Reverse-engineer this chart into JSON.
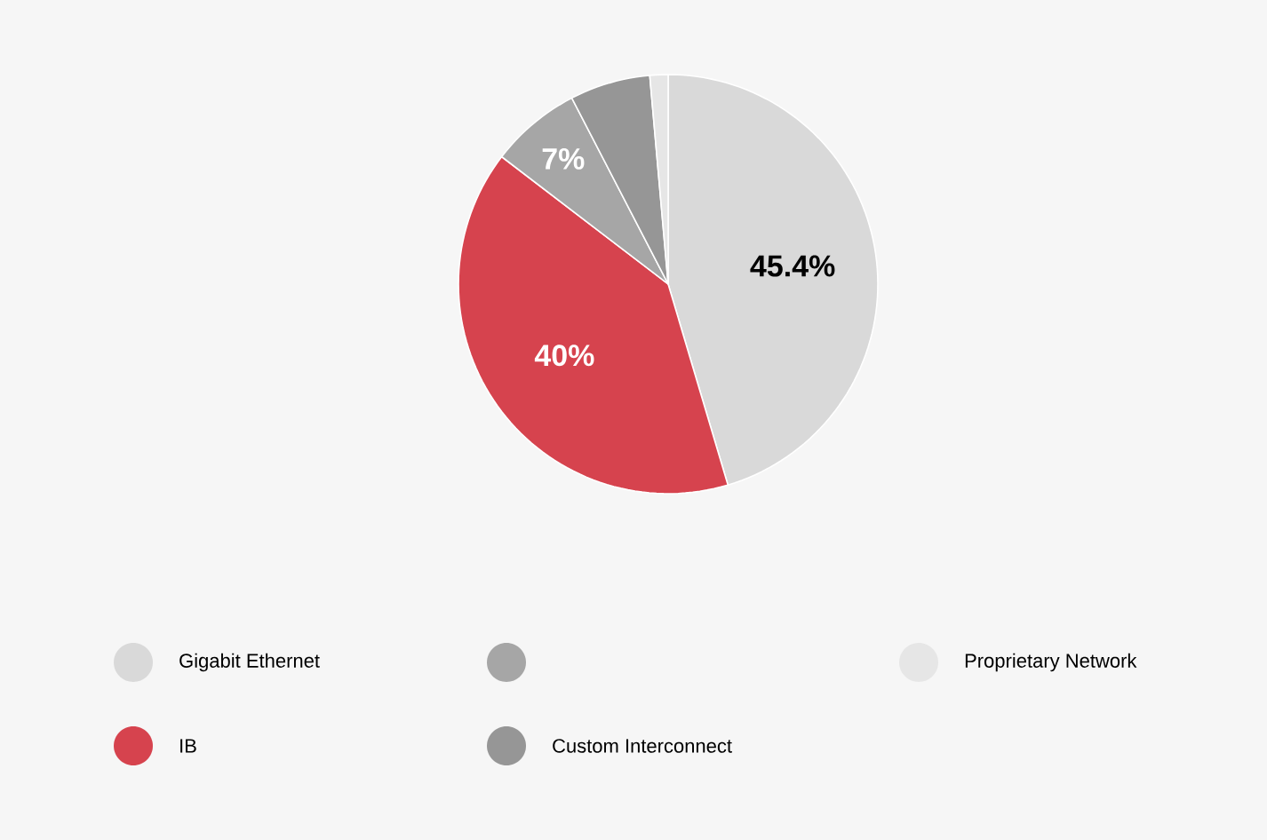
{
  "chart_data": {
    "type": "pie",
    "categories": [
      "Gigabit Ethernet",
      "IB",
      null,
      "Custom Interconnect",
      "Proprietary Network"
    ],
    "values": [
      45.4,
      40,
      7,
      6.2,
      1.4
    ],
    "colors": [
      "#d9d9d9",
      "#d6434e",
      "#a6a6a6",
      "#969696",
      "#e6e6e6"
    ],
    "value_labels": [
      "45.4%",
      "40%",
      "7%",
      null,
      null
    ],
    "legend": "bottom"
  }
}
